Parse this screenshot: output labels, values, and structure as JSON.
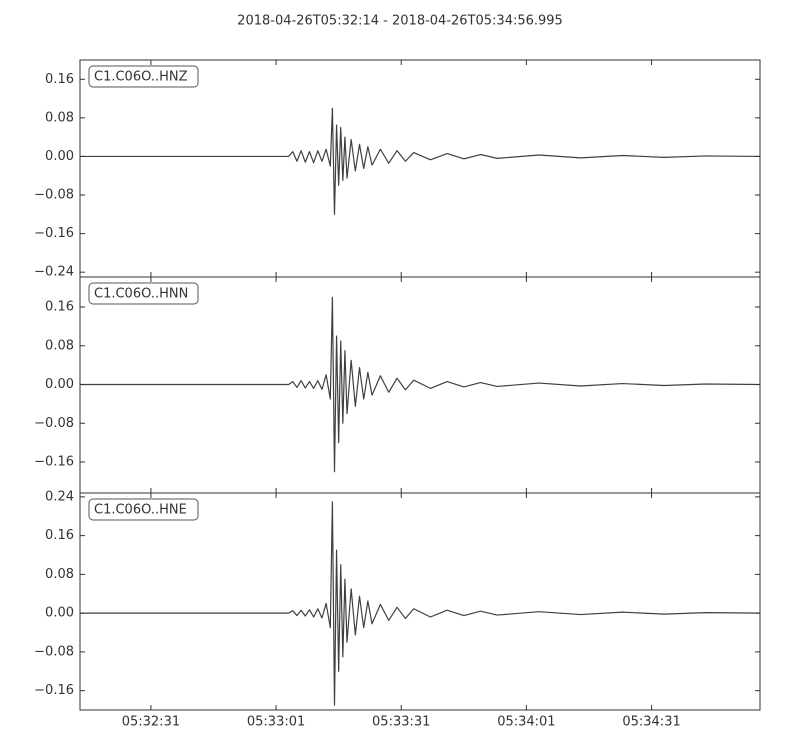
{
  "title": "2018-04-26T05:32:14  -  2018-04-26T05:34:56.995",
  "chart_data": [
    {
      "type": "line",
      "label": "C1.C06O..HNZ",
      "color": "#404040",
      "x": [
        0,
        50,
        51,
        52,
        53,
        54,
        55,
        56,
        57,
        58,
        59,
        60,
        60.5,
        61,
        61.5,
        62,
        62.5,
        63,
        63.5,
        64,
        65,
        66,
        67,
        68,
        69,
        70,
        72,
        74,
        76,
        78,
        80,
        84,
        88,
        92,
        96,
        100,
        110,
        120,
        130,
        140,
        150,
        162.995
      ],
      "values": [
        0,
        0,
        0.01,
        -0.01,
        0.012,
        -0.012,
        0.01,
        -0.013,
        0.012,
        -0.01,
        0.015,
        -0.02,
        0.1,
        -0.12,
        0.065,
        -0.06,
        0.06,
        -0.05,
        0.04,
        -0.045,
        0.035,
        -0.03,
        0.025,
        -0.025,
        0.02,
        -0.018,
        0.015,
        -0.014,
        0.012,
        -0.01,
        0.008,
        -0.007,
        0.006,
        -0.005,
        0.004,
        -0.004,
        0.003,
        -0.003,
        0.002,
        -0.002,
        0.001,
        0
      ],
      "xlim": [
        0,
        162.995
      ],
      "ylim": [
        -0.25,
        0.2
      ],
      "yticks": [
        0.16,
        0.08,
        {
          "value": 0,
          "label": "0.00"
        },
        {
          "value": -0.08,
          "label": "−0.08"
        },
        {
          "value": -0.16,
          "label": "−0.16"
        },
        {
          "value": -0.24,
          "label": "−0.24"
        }
      ]
    },
    {
      "type": "line",
      "label": "C1.C06O..HNN",
      "color": "#404040",
      "x": [
        0,
        50,
        51,
        52,
        53,
        54,
        55,
        56,
        57,
        58,
        59,
        60,
        60.5,
        61,
        61.5,
        62,
        62.5,
        63,
        63.5,
        64,
        65,
        66,
        67,
        68,
        69,
        70,
        72,
        74,
        76,
        78,
        80,
        84,
        88,
        92,
        96,
        100,
        110,
        120,
        130,
        140,
        150,
        162.995
      ],
      "values": [
        0,
        0,
        0.006,
        -0.006,
        0.008,
        -0.007,
        0.006,
        -0.008,
        0.008,
        -0.01,
        0.02,
        -0.03,
        0.18,
        -0.18,
        0.1,
        -0.12,
        0.09,
        -0.08,
        0.07,
        -0.06,
        0.05,
        -0.045,
        0.035,
        -0.03,
        0.025,
        -0.022,
        0.018,
        -0.016,
        0.013,
        -0.011,
        0.009,
        -0.008,
        0.006,
        -0.005,
        0.004,
        -0.004,
        0.003,
        -0.003,
        0.002,
        -0.002,
        0.001,
        0
      ],
      "xlim": [
        0,
        162.995
      ],
      "ylim": [
        -0.224,
        0.222
      ],
      "yticks": [
        0.16,
        0.08,
        {
          "value": 0,
          "label": "0.00"
        },
        {
          "value": -0.08,
          "label": "−0.08"
        },
        {
          "value": -0.16,
          "label": "−0.16"
        }
      ]
    },
    {
      "type": "line",
      "label": "C1.C06O..HNE",
      "color": "#404040",
      "x": [
        0,
        50,
        51,
        52,
        53,
        54,
        55,
        56,
        57,
        58,
        59,
        60,
        60.5,
        61,
        61.5,
        62,
        62.5,
        63,
        63.5,
        64,
        65,
        66,
        67,
        68,
        69,
        70,
        72,
        74,
        76,
        78,
        80,
        84,
        88,
        92,
        96,
        100,
        110,
        120,
        130,
        140,
        150,
        162.995
      ],
      "values": [
        0,
        0,
        0.005,
        -0.005,
        0.006,
        -0.006,
        0.007,
        -0.008,
        0.009,
        -0.01,
        0.02,
        -0.03,
        0.23,
        -0.19,
        0.13,
        -0.12,
        0.1,
        -0.09,
        0.07,
        -0.06,
        0.05,
        -0.045,
        0.035,
        -0.03,
        0.025,
        -0.022,
        0.018,
        -0.015,
        0.012,
        -0.011,
        0.009,
        -0.008,
        0.006,
        -0.005,
        0.004,
        -0.004,
        0.003,
        -0.003,
        0.002,
        -0.002,
        0.001,
        0
      ],
      "xlim": [
        0,
        162.995
      ],
      "ylim": [
        -0.2,
        0.248
      ],
      "yticks": [
        0.24,
        0.16,
        0.08,
        {
          "value": 0,
          "label": "0.00"
        },
        {
          "value": -0.08,
          "label": "−0.08"
        },
        {
          "value": -0.16,
          "label": "−0.16"
        }
      ],
      "xticks": [
        {
          "value": 17,
          "label": "05:32:31"
        },
        {
          "value": 47,
          "label": "05:33:01"
        },
        {
          "value": 77,
          "label": "05:33:31"
        },
        {
          "value": 107,
          "label": "05:34:01"
        },
        {
          "value": 137,
          "label": "05:34:31"
        }
      ]
    }
  ]
}
